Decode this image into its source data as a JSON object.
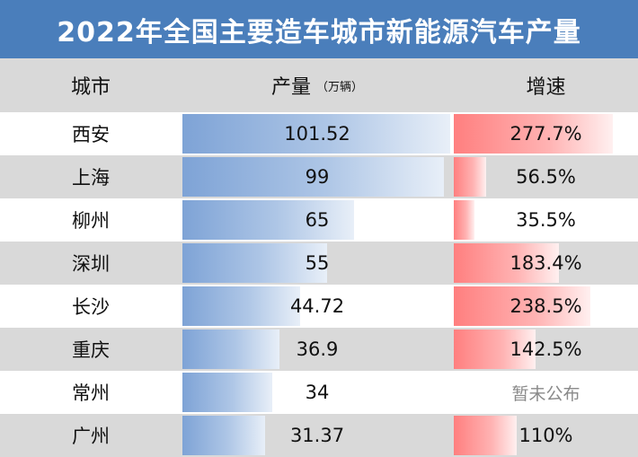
{
  "title": "2022年全国主要造车城市新能源汽车产量",
  "headers": {
    "city": "城市",
    "output": "产量",
    "output_unit": "（万辆）",
    "growth": "增速"
  },
  "colors": {
    "title_bg": "#4a7ebb",
    "output_bar": "#7ea3d6",
    "growth_bar": "#ff7f7f"
  },
  "chart_data": {
    "type": "table",
    "columns": [
      "城市",
      "产量（万辆）",
      "增速"
    ],
    "output_max": 101.52,
    "growth_max": 277.7,
    "rows": [
      {
        "city": "西安",
        "output": 101.52,
        "output_label": "101.52",
        "growth": 277.7,
        "growth_label": "277.7%"
      },
      {
        "city": "上海",
        "output": 99,
        "output_label": "99",
        "growth": 56.5,
        "growth_label": "56.5%"
      },
      {
        "city": "柳州",
        "output": 65,
        "output_label": "65",
        "growth": 35.5,
        "growth_label": "35.5%"
      },
      {
        "city": "深圳",
        "output": 55,
        "output_label": "55",
        "growth": 183.4,
        "growth_label": "183.4%"
      },
      {
        "city": "长沙",
        "output": 44.72,
        "output_label": "44.72",
        "growth": 238.5,
        "growth_label": "238.5%"
      },
      {
        "city": "重庆",
        "output": 36.9,
        "output_label": "36.9",
        "growth": 142.5,
        "growth_label": "142.5%"
      },
      {
        "city": "常州",
        "output": 34,
        "output_label": "34",
        "growth": null,
        "growth_label": "暂未公布"
      },
      {
        "city": "广州",
        "output": 31.37,
        "output_label": "31.37",
        "growth": 110,
        "growth_label": "110%"
      }
    ]
  }
}
